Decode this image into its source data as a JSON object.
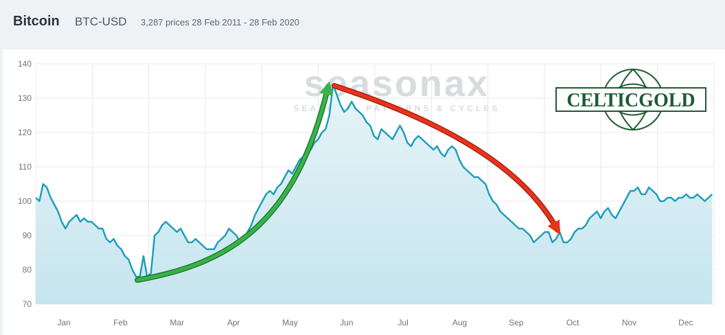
{
  "header": {
    "title": "Bitcoin",
    "ticker": "BTC-USD",
    "meta": "3,287 prices  28 Feb 2011 - 28 Feb 2020"
  },
  "watermark": {
    "brand": "seasonax",
    "tagline": "SEASONAL PATTERNS & CYCLES"
  },
  "logo": {
    "text": "CELTICGOLD"
  },
  "colors": {
    "line": "#1f9dbb",
    "fill": "#d2ebf1",
    "up_arrow": "#37b34a",
    "down_arrow": "#e8341c",
    "logo": "#1e5a32"
  },
  "chart_data": {
    "type": "area",
    "title": "",
    "xlabel": "",
    "ylabel": "",
    "x_domain": [
      0,
      365
    ],
    "ylim": [
      70,
      140
    ],
    "yticks": [
      70,
      80,
      90,
      100,
      110,
      120,
      130,
      140
    ],
    "month_ticks": [
      "Jan",
      "Feb",
      "Mar",
      "Apr",
      "May",
      "Jun",
      "Jul",
      "Aug",
      "Sep",
      "Oct",
      "Nov",
      "Dec"
    ],
    "grid": true,
    "x": [
      0,
      2,
      4,
      6,
      8,
      10,
      12,
      14,
      16,
      18,
      20,
      22,
      24,
      26,
      28,
      30,
      32,
      34,
      36,
      38,
      40,
      42,
      44,
      46,
      48,
      50,
      52,
      54,
      56,
      58,
      60,
      62,
      64,
      66,
      68,
      70,
      72,
      74,
      76,
      78,
      80,
      82,
      84,
      86,
      88,
      90,
      92,
      94,
      96,
      98,
      100,
      102,
      104,
      106,
      108,
      110,
      112,
      114,
      116,
      118,
      120,
      122,
      124,
      126,
      128,
      130,
      132,
      134,
      136,
      138,
      140,
      142,
      144,
      146,
      148,
      150,
      152,
      154,
      156,
      158,
      160,
      162,
      164,
      166,
      168,
      170,
      172,
      174,
      176,
      178,
      180,
      182,
      184,
      186,
      188,
      190,
      192,
      194,
      196,
      198,
      200,
      202,
      204,
      206,
      208,
      210,
      212,
      214,
      216,
      218,
      220,
      222,
      224,
      226,
      228,
      230,
      232,
      234,
      236,
      238,
      240,
      242,
      244,
      246,
      248,
      250,
      252,
      254,
      256,
      258,
      260,
      262,
      264,
      266,
      268,
      270,
      272,
      274,
      276,
      278,
      280,
      282,
      284,
      286,
      288,
      290,
      292,
      294,
      296,
      298,
      300,
      302,
      304,
      306,
      308,
      310,
      312,
      314,
      316,
      318,
      320,
      322,
      324,
      326,
      328,
      330,
      332,
      334,
      336,
      338,
      340,
      342,
      344,
      346,
      348,
      350,
      352,
      354,
      356,
      358,
      360,
      362,
      364
    ],
    "series": [
      {
        "values": [
          101,
          100,
          105,
          104,
          101,
          99,
          97,
          94,
          92,
          94,
          95,
          96,
          94,
          95,
          94,
          94,
          93,
          92,
          92,
          89,
          88,
          89,
          87,
          86,
          84,
          83,
          80,
          78,
          78,
          84,
          78,
          79,
          90,
          91,
          93,
          94,
          93,
          92,
          91,
          92,
          90,
          88,
          88,
          89,
          88,
          87,
          86,
          86,
          86,
          88,
          89,
          90,
          92,
          91,
          90,
          88,
          89,
          91,
          93,
          96,
          98,
          100,
          102,
          103,
          102,
          104,
          105,
          107,
          109,
          108,
          110,
          112,
          113,
          114,
          115,
          117,
          118,
          120,
          121,
          125,
          134,
          131,
          128,
          126,
          127,
          129,
          127,
          126,
          125,
          123,
          122,
          119,
          118,
          121,
          120,
          119,
          118,
          120,
          122,
          120,
          117,
          116,
          118,
          119,
          118,
          117,
          116,
          115,
          116,
          114,
          113,
          115,
          116,
          115,
          112,
          110,
          109,
          108,
          107,
          107,
          106,
          105,
          102,
          100,
          99,
          97,
          96,
          95,
          94,
          93,
          92,
          92,
          91,
          90,
          88,
          89,
          90,
          91,
          91,
          88,
          89,
          91,
          88,
          88,
          89,
          91,
          92,
          92,
          93,
          95,
          96,
          97,
          95,
          97,
          98,
          96,
          95,
          97,
          99,
          101,
          103,
          103,
          104,
          102,
          102,
          104,
          103,
          102,
          100,
          100,
          101,
          101,
          100,
          101,
          101,
          102,
          101,
          101,
          102,
          101,
          100,
          101,
          102
        ]
      }
    ]
  }
}
